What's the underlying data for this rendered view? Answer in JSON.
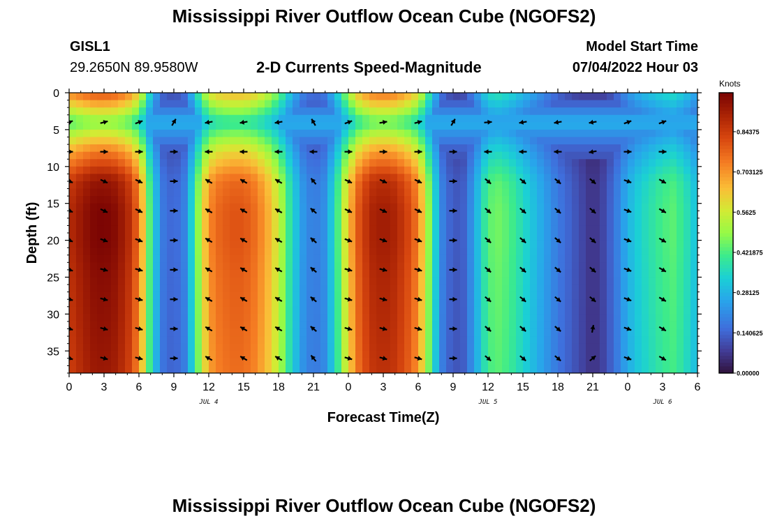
{
  "header": {
    "title": "Mississippi River Outflow Ocean Cube (NGOFS2)",
    "station_id": "GISL1",
    "station_coords": "29.2650N  89.9580W",
    "variable": "2-D Currents Speed-Magnitude",
    "model_start_label": "Model Start Time",
    "model_start_value": "07/04/2022 Hour 03"
  },
  "footer": {
    "title": "Mississippi River Outflow Ocean Cube (NGOFS2)"
  },
  "chart_data": {
    "type": "heatmap",
    "xlabel": "Forecast Time(Z)",
    "ylabel": "Depth (ft)",
    "x_tick_labels": [
      "0",
      "3",
      "6",
      "9",
      "12",
      "15",
      "18",
      "21",
      "0",
      "3",
      "6",
      "9",
      "12",
      "15",
      "18",
      "21",
      "0",
      "3",
      "6"
    ],
    "x_hours": [
      0,
      3,
      6,
      9,
      12,
      15,
      18,
      21,
      24,
      27,
      30,
      33,
      36,
      39,
      42,
      45,
      48,
      51,
      54
    ],
    "xlim": [
      0,
      54
    ],
    "date_labels": [
      {
        "label": "JUL 4",
        "hour": 12
      },
      {
        "label": "JUL 5",
        "hour": 36
      },
      {
        "label": "JUL 6",
        "hour": 51
      }
    ],
    "y_ticks": [
      0,
      5,
      10,
      15,
      20,
      25,
      30,
      35
    ],
    "y_tick_labels": [
      "0",
      "5",
      "10",
      "15",
      "20",
      "25",
      "30",
      "35"
    ],
    "ylim": [
      0,
      38
    ],
    "y_inverted": true,
    "colorbar": {
      "unit": "Knots",
      "min": 0,
      "max": 0.98,
      "ticks": [
        {
          "value": 0.0,
          "label": "0.00000"
        },
        {
          "value": 0.140625,
          "label": "0.140625"
        },
        {
          "value": 0.28125,
          "label": "0.28125"
        },
        {
          "value": 0.421875,
          "label": "0.421875"
        },
        {
          "value": 0.5625,
          "label": "0.5625"
        },
        {
          "value": 0.703125,
          "label": "0.703125"
        },
        {
          "value": 0.84375,
          "label": "0.84375"
        }
      ],
      "colormap": "turbo"
    },
    "speed_grid": {
      "x_hours": [
        0,
        1,
        2,
        3,
        4,
        5,
        6,
        7,
        8,
        9,
        10,
        11,
        12,
        13,
        14,
        15,
        16,
        17,
        18,
        19,
        20,
        21,
        22,
        23,
        24,
        25,
        26,
        27,
        28,
        29,
        30,
        31,
        32,
        33,
        34,
        35,
        36,
        37,
        38,
        39,
        40,
        41,
        42,
        43,
        44,
        45,
        46,
        47,
        48,
        49,
        50,
        51,
        52,
        53,
        54
      ],
      "hour_speed_max": [
        0.88,
        0.93,
        0.97,
        0.98,
        0.96,
        0.9,
        0.76,
        0.4,
        0.18,
        0.14,
        0.2,
        0.46,
        0.72,
        0.78,
        0.8,
        0.8,
        0.76,
        0.68,
        0.56,
        0.38,
        0.24,
        0.18,
        0.22,
        0.4,
        0.64,
        0.82,
        0.9,
        0.92,
        0.9,
        0.84,
        0.74,
        0.46,
        0.2,
        0.12,
        0.14,
        0.28,
        0.44,
        0.46,
        0.42,
        0.36,
        0.3,
        0.24,
        0.18,
        0.14,
        0.1,
        0.06,
        0.1,
        0.18,
        0.28,
        0.34,
        0.38,
        0.42,
        0.44,
        0.38,
        0.3
      ],
      "depths_ft": [
        0,
        4,
        8,
        12,
        16,
        20,
        25,
        30,
        34,
        38
      ],
      "depth_factor": [
        0.82,
        0.48,
        0.76,
        0.96,
        1.0,
        1.0,
        0.98,
        0.97,
        0.96,
        0.95
      ],
      "upper_floor_depths_ft": [
        0,
        4,
        8
      ],
      "upper_floor": [
        0.06,
        0.28,
        0.12
      ]
    },
    "vectors": {
      "x_hours": [
        0,
        3,
        6,
        9,
        12,
        15,
        18,
        21,
        24,
        27,
        30,
        33,
        36,
        39,
        42,
        45,
        48,
        51
      ],
      "depths_ft": [
        4,
        8,
        12,
        16,
        20,
        24,
        28,
        32,
        36
      ],
      "directions_deg": [
        [
          20,
          15,
          20,
          60,
          190,
          190,
          190,
          120,
          20,
          10,
          15,
          60,
          5,
          190,
          190,
          190,
          20,
          20
        ],
        [
          0,
          0,
          0,
          0,
          180,
          180,
          180,
          180,
          0,
          0,
          0,
          0,
          180,
          180,
          180,
          190,
          0,
          0
        ],
        [
          -20,
          -25,
          -25,
          0,
          150,
          150,
          150,
          130,
          -25,
          -25,
          -25,
          0,
          -40,
          -40,
          -40,
          -40,
          -20,
          -30
        ],
        [
          -20,
          -25,
          -25,
          0,
          150,
          150,
          150,
          140,
          -25,
          -25,
          -25,
          0,
          -40,
          -40,
          -40,
          -40,
          -20,
          -30
        ],
        [
          -20,
          -20,
          -20,
          0,
          150,
          150,
          150,
          140,
          -20,
          -20,
          -20,
          0,
          -40,
          -40,
          -40,
          -40,
          -20,
          -30
        ],
        [
          -15,
          -15,
          -15,
          0,
          150,
          150,
          150,
          140,
          -15,
          -15,
          -15,
          0,
          -40,
          -40,
          -40,
          -40,
          -20,
          -30
        ],
        [
          -15,
          -15,
          -15,
          0,
          150,
          150,
          150,
          140,
          -15,
          -15,
          -15,
          0,
          -40,
          -40,
          -40,
          -40,
          -20,
          -30
        ],
        [
          -15,
          -15,
          -15,
          0,
          150,
          150,
          150,
          140,
          -15,
          -15,
          -15,
          0,
          -40,
          -40,
          -40,
          80,
          -20,
          -30
        ],
        [
          -15,
          -15,
          -15,
          0,
          150,
          150,
          150,
          130,
          -15,
          -15,
          -15,
          0,
          -40,
          -40,
          -40,
          40,
          -20,
          -30
        ]
      ]
    }
  }
}
